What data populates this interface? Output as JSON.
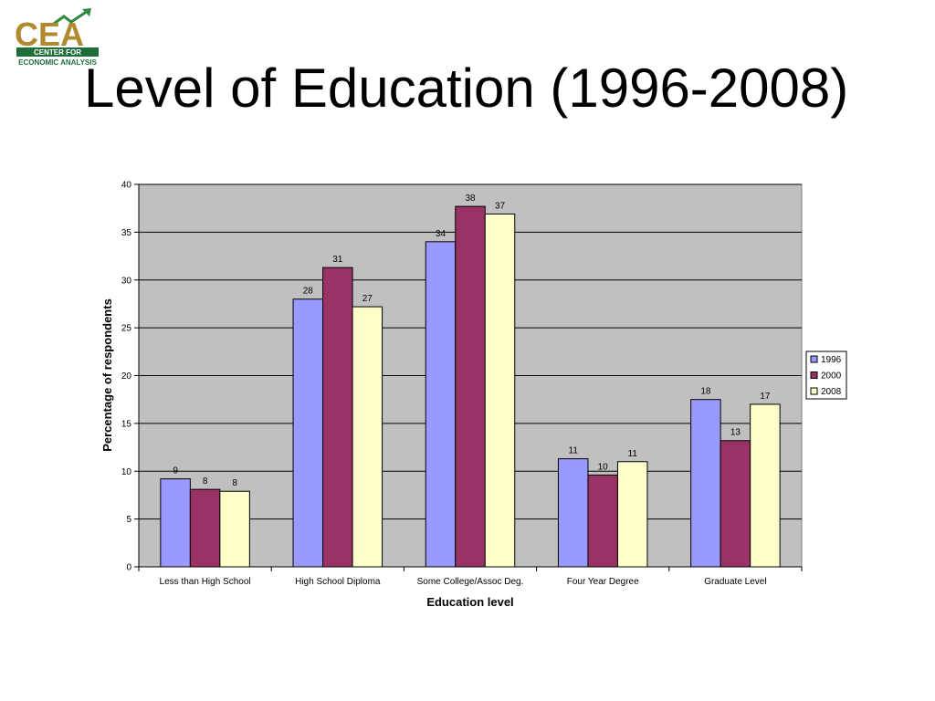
{
  "slide": {
    "title": "Level of Education (1996-2008)"
  },
  "logo": {
    "acronym": "CEA",
    "line1": "CENTER FOR",
    "line2": "ECONOMIC ANALYSIS",
    "colors": {
      "green": "#1f6e3a",
      "gold": "#b08a2e",
      "arrow": "#2e8a3e"
    }
  },
  "chart_data": {
    "type": "bar",
    "title": "",
    "xlabel": "Education level",
    "ylabel": "Percentage of respondents",
    "ylim": [
      0,
      40
    ],
    "yticks": [
      0,
      5,
      10,
      15,
      20,
      25,
      30,
      35,
      40
    ],
    "grid": true,
    "legend_position": "right",
    "categories": [
      "Less than High School",
      "High School Diploma",
      "Some College/Assoc Deg.",
      "Four Year Degree",
      "Graduate Level"
    ],
    "series": [
      {
        "name": "1996",
        "color": "#9999ff",
        "values": [
          9.2,
          28.0,
          34.0,
          11.3,
          17.5
        ],
        "labels": [
          "9",
          "28",
          "34",
          "11",
          "18"
        ]
      },
      {
        "name": "2000",
        "color": "#993366",
        "values": [
          8.1,
          31.3,
          37.7,
          9.6,
          13.2
        ],
        "labels": [
          "8",
          "31",
          "38",
          "10",
          "13"
        ]
      },
      {
        "name": "2008",
        "color": "#ffffcc",
        "values": [
          7.9,
          27.2,
          36.9,
          11.0,
          17.0
        ],
        "labels": [
          "8",
          "27",
          "37",
          "11",
          "17"
        ]
      }
    ],
    "colors": {
      "plot_background": "#c0c0c0",
      "gridline": "#000000"
    }
  }
}
